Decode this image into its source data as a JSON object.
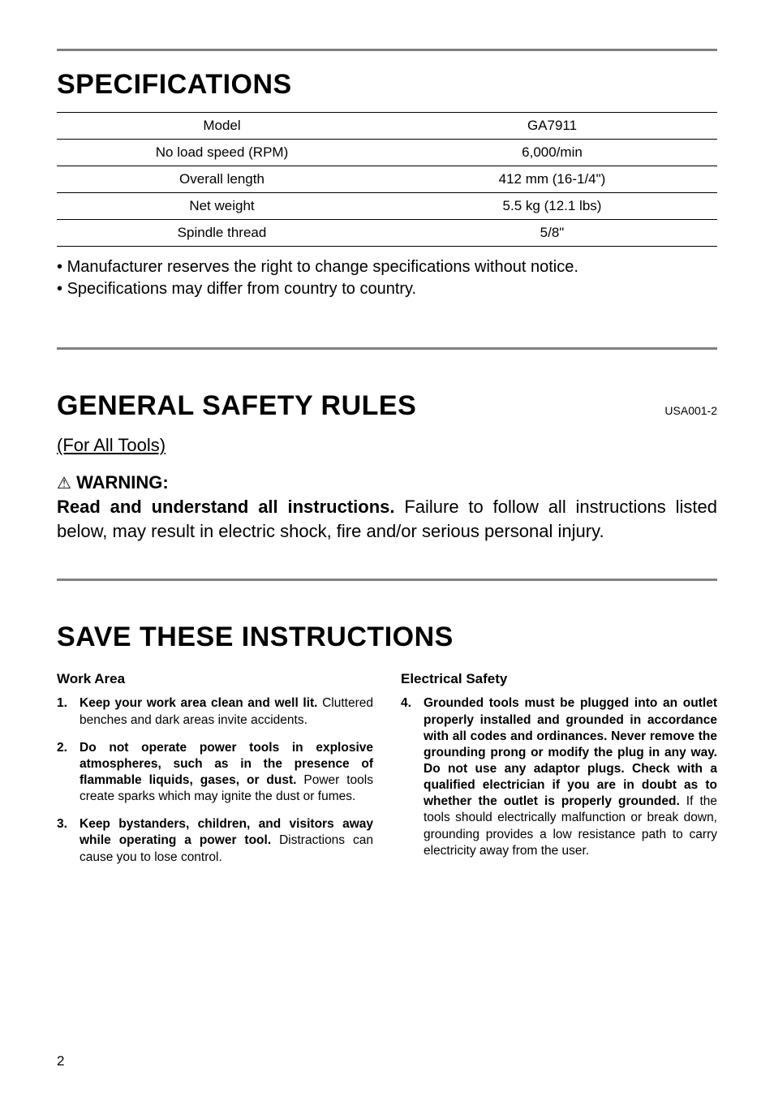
{
  "colors": {
    "hr": "#808080",
    "text": "#000000",
    "bg": "#ffffff"
  },
  "typography": {
    "h1_fontsize_pt": 26,
    "body_fontsize_pt": 15,
    "table_fontsize_pt": 13,
    "rule_fontsize_pt": 12
  },
  "specifications": {
    "heading": "SPECIFICATIONS",
    "rows": [
      {
        "label": "Model",
        "value": "GA7911"
      },
      {
        "label": "No load speed (RPM)",
        "value": "6,000/min"
      },
      {
        "label": "Overall length",
        "value": "412 mm (16-1/4\")"
      },
      {
        "label": "Net weight",
        "value": "5.5 kg (12.1 lbs)"
      },
      {
        "label": "Spindle thread",
        "value": "5/8\""
      }
    ],
    "notes": [
      "Manufacturer reserves the right to change specifications without notice.",
      "Specifications may differ from country to country."
    ]
  },
  "general_safety": {
    "heading": "GENERAL SAFETY RULES",
    "code": "USA001-2",
    "subhead": "(For All Tools)",
    "warning_label": "WARNING:",
    "warning_lead": "Read and understand all instructions.",
    "warning_body": " Failure to follow all instructions listed below, may result in electric shock, fire and/or serious personal injury."
  },
  "save_instructions": {
    "heading": "SAVE THESE INSTRUCTIONS",
    "left": {
      "title": "Work Area",
      "items": [
        {
          "bold": "Keep your work area clean and well lit.",
          "rest": " Cluttered benches and dark areas invite accidents."
        },
        {
          "bold": "Do not operate power tools in explosive atmospheres, such as in the presence of flammable liquids, gases, or dust.",
          "rest": " Power tools create sparks which may ignite the dust or fumes."
        },
        {
          "bold": "Keep bystanders, children, and visitors away while operating a power tool.",
          "rest": " Distractions can cause you to lose control."
        }
      ]
    },
    "right": {
      "title": "Electrical Safety",
      "items": [
        {
          "bold": "Grounded tools must be plugged into an outlet properly installed and grounded in accordance with all codes and ordinances. Never remove the grounding prong or modify the plug in any way. Do not use any adaptor plugs. Check with a qualified electrician if you are in doubt as to whether the outlet is properly grounded.",
          "rest": " If the tools should electrically malfunction or break down, grounding provides a low resistance path to carry electricity away from the user."
        }
      ]
    }
  },
  "page_number": "2"
}
